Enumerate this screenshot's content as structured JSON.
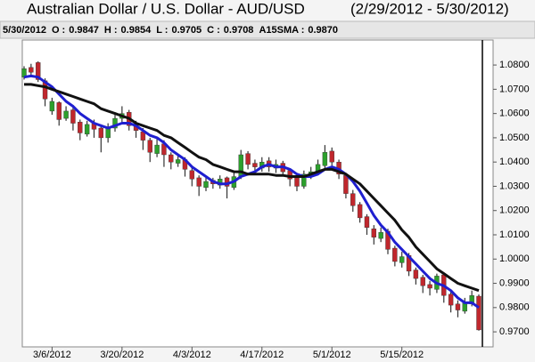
{
  "chart_data": {
    "type": "candlestick",
    "title": "Australian Dollar / U.S. Dollar -  AUD/USD",
    "subtitle": "(2/29/2012 - 5/30/2012)",
    "status": {
      "date": "5/30/2012",
      "items": [
        {
          "label": "O :",
          "value": "0.9847"
        },
        {
          "label": "H :",
          "value": "0.9854"
        },
        {
          "label": "L :",
          "value": "0.9705"
        },
        {
          "label": "C :",
          "value": "0.9708"
        },
        {
          "label": "A15SMA :",
          "value": "0.9870"
        }
      ]
    },
    "categories": [
      null,
      null,
      null,
      null,
      "3/6/2012",
      null,
      null,
      null,
      null,
      null,
      null,
      null,
      null,
      null,
      "3/20/2012",
      null,
      null,
      null,
      null,
      null,
      null,
      null,
      null,
      null,
      "4/3/2012",
      null,
      null,
      null,
      null,
      null,
      null,
      null,
      null,
      null,
      "4/17/2012",
      null,
      null,
      null,
      null,
      null,
      null,
      null,
      null,
      null,
      "5/1/2012",
      null,
      null,
      null,
      null,
      null,
      null,
      null,
      null,
      null,
      "5/15/2012",
      null,
      null,
      null,
      null,
      null,
      null,
      null,
      null,
      null,
      null,
      null
    ],
    "open": [
      1.075,
      1.079,
      1.081,
      1.0735,
      1.061,
      1.0645,
      1.058,
      1.0615,
      1.0565,
      1.0515,
      1.056,
      1.054,
      1.05,
      1.054,
      1.058,
      1.0605,
      1.0555,
      1.0525,
      1.049,
      1.0435,
      1.0475,
      1.043,
      1.0395,
      1.041,
      1.0365,
      1.0335,
      1.0295,
      1.0325,
      1.0305,
      1.0335,
      1.0295,
      1.034,
      1.0435,
      1.0395,
      1.0375,
      1.0405,
      1.0375,
      1.0395,
      1.0365,
      1.0335,
      1.03,
      1.0345,
      1.0355,
      1.0385,
      1.0445,
      1.04,
      1.0345,
      1.027,
      1.0225,
      1.0175,
      1.0125,
      1.0085,
      1.0115,
      1.0045,
      0.9985,
      1.0015,
      0.9955,
      0.9925,
      0.9895,
      0.9875,
      0.9935,
      0.9855,
      0.9815,
      0.9785,
      0.9815,
      0.9847
    ],
    "high": [
      1.0795,
      1.0805,
      1.0815,
      1.0745,
      1.0665,
      1.065,
      1.063,
      1.0625,
      1.0575,
      1.057,
      1.0575,
      1.0555,
      1.056,
      1.06,
      1.063,
      1.0615,
      1.057,
      1.054,
      1.05,
      1.05,
      1.049,
      1.044,
      1.043,
      1.042,
      1.038,
      1.0345,
      1.034,
      1.0335,
      1.0345,
      1.034,
      1.0355,
      1.045,
      1.0445,
      1.041,
      1.042,
      1.042,
      1.041,
      1.0405,
      1.0375,
      1.0345,
      1.0365,
      1.038,
      1.041,
      1.047,
      1.046,
      1.041,
      1.0355,
      1.0285,
      1.0235,
      1.0185,
      1.014,
      1.013,
      1.0125,
      1.0055,
      1.003,
      1.0025,
      0.9965,
      0.9935,
      0.991,
      0.994,
      0.9945,
      0.9865,
      0.983,
      0.984,
      0.987,
      0.9854
    ],
    "low": [
      1.074,
      1.076,
      1.073,
      1.063,
      1.0595,
      1.055,
      1.057,
      1.053,
      1.049,
      1.0505,
      1.05,
      1.044,
      1.048,
      1.0525,
      1.056,
      1.053,
      1.05,
      1.045,
      1.04,
      1.042,
      1.038,
      1.037,
      1.038,
      1.034,
      1.03,
      1.026,
      1.028,
      1.029,
      1.029,
      1.025,
      1.0285,
      1.033,
      1.037,
      1.036,
      1.036,
      1.036,
      1.0355,
      1.034,
      1.03,
      1.028,
      1.029,
      1.033,
      1.0345,
      1.0375,
      1.0385,
      1.033,
      1.025,
      1.0195,
      1.015,
      1.01,
      1.006,
      1.007,
      1.002,
      0.997,
      0.9965,
      0.993,
      0.9895,
      0.986,
      0.985,
      0.986,
      0.982,
      0.978,
      0.976,
      0.9775,
      0.9805,
      0.9705
    ],
    "close": [
      1.0785,
      1.077,
      1.074,
      1.066,
      1.065,
      1.0575,
      1.061,
      1.056,
      1.052,
      1.0555,
      1.0535,
      1.05,
      1.0545,
      1.058,
      1.06,
      1.055,
      1.053,
      1.049,
      1.044,
      1.047,
      1.043,
      1.04,
      1.041,
      1.037,
      1.033,
      1.03,
      1.032,
      1.031,
      1.033,
      1.03,
      1.034,
      1.043,
      1.039,
      1.038,
      1.04,
      1.038,
      1.039,
      1.036,
      1.033,
      1.03,
      1.035,
      1.036,
      1.039,
      1.044,
      1.04,
      1.035,
      1.027,
      1.022,
      1.017,
      1.013,
      1.009,
      1.011,
      1.004,
      0.999,
      1.001,
      0.995,
      0.992,
      0.989,
      0.988,
      0.993,
      0.985,
      0.981,
      0.979,
      0.982,
      0.985,
      0.9708
    ],
    "up_color": "#2ca02c",
    "down_color": "#c0272d",
    "lines": [
      {
        "color": "#1f1fd0",
        "values": [
          1.075,
          1.0755,
          1.075,
          1.073,
          1.071,
          1.068,
          1.065,
          1.063,
          1.06,
          1.058,
          1.056,
          1.055,
          1.054,
          1.055,
          1.056,
          1.056,
          1.055,
          1.053,
          1.051,
          1.05,
          1.048,
          1.045,
          1.043,
          1.041,
          1.038,
          1.036,
          1.034,
          1.032,
          1.031,
          1.031,
          1.032,
          1.034,
          1.035,
          1.036,
          1.038,
          1.039,
          1.038,
          1.038,
          1.037,
          1.035,
          1.034,
          1.034,
          1.035,
          1.037,
          1.038,
          1.037,
          1.035,
          1.032,
          1.028,
          1.023,
          1.018,
          1.014,
          1.011,
          1.007,
          1.004,
          1.001,
          0.998,
          0.995,
          0.992,
          0.99,
          0.989,
          0.987,
          0.984,
          0.982,
          0.982,
          0.98
        ]
      },
      {
        "color": "#111111",
        "values": [
          1.072,
          1.072,
          1.0715,
          1.071,
          1.07,
          1.069,
          1.068,
          1.067,
          1.066,
          1.065,
          1.064,
          1.062,
          1.061,
          1.06,
          1.059,
          1.058,
          1.056,
          1.055,
          1.054,
          1.053,
          1.051,
          1.05,
          1.048,
          1.046,
          1.044,
          1.042,
          1.041,
          1.039,
          1.038,
          1.037,
          1.036,
          1.036,
          1.035,
          1.035,
          1.035,
          1.035,
          1.0345,
          1.0345,
          1.034,
          1.034,
          1.034,
          1.035,
          1.036,
          1.037,
          1.037,
          1.036,
          1.035,
          1.033,
          1.031,
          1.028,
          1.025,
          1.022,
          1.019,
          1.016,
          1.012,
          1.009,
          1.005,
          1.002,
          0.999,
          0.996,
          0.994,
          0.992,
          0.99,
          0.989,
          0.988,
          0.987
        ]
      }
    ],
    "ylim": [
      0.9638,
      1.0903
    ],
    "yticks": [
      {
        "value": 0.97,
        "label": "0.9700"
      },
      {
        "value": 0.98,
        "label": "0.9800"
      },
      {
        "value": 0.99,
        "label": "0.9900"
      },
      {
        "value": 1.0,
        "label": "1.0000"
      },
      {
        "value": 1.01,
        "label": "1.0100"
      },
      {
        "value": 1.02,
        "label": "1.0200"
      },
      {
        "value": 1.03,
        "label": "1.0300"
      },
      {
        "value": 1.04,
        "label": "1.0400"
      },
      {
        "value": 1.05,
        "label": "1.0500"
      },
      {
        "value": 1.06,
        "label": "1.0600"
      },
      {
        "value": 1.07,
        "label": "1.0700"
      },
      {
        "value": 1.08,
        "label": "1.0800"
      }
    ],
    "grid": false
  }
}
